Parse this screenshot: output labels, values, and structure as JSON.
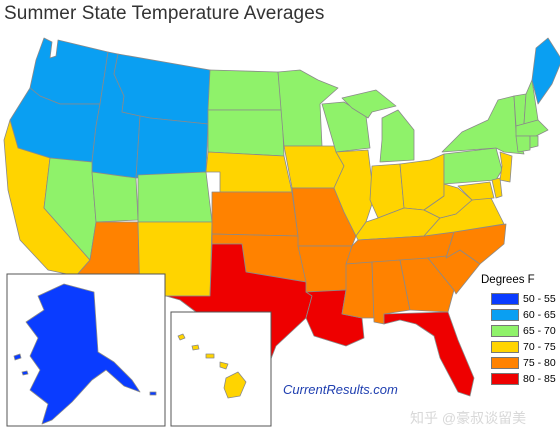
{
  "title": "Summer State Temperature Averages",
  "credit": "CurrentResults.com",
  "watermark": "知乎 @豪叔谈留美",
  "legend": {
    "title": "Degrees F",
    "items": [
      {
        "label": "50 - 55",
        "color": "#0a3cff"
      },
      {
        "label": "60 - 65",
        "color": "#0a9ff2"
      },
      {
        "label": "65 - 70",
        "color": "#8ff26a"
      },
      {
        "label": "70 - 75",
        "color": "#ffd400"
      },
      {
        "label": "75 - 80",
        "color": "#ff8200"
      },
      {
        "label": "80 - 85",
        "color": "#ee0000"
      }
    ]
  },
  "states": [
    {
      "code": "WA",
      "range": "60 - 65"
    },
    {
      "code": "OR",
      "range": "60 - 65"
    },
    {
      "code": "ID",
      "range": "60 - 65"
    },
    {
      "code": "MT",
      "range": "60 - 65"
    },
    {
      "code": "WY",
      "range": "60 - 65"
    },
    {
      "code": "ME",
      "range": "60 - 65"
    },
    {
      "code": "CA",
      "range": "70 - 75"
    },
    {
      "code": "NV",
      "range": "65 - 70"
    },
    {
      "code": "UT",
      "range": "65 - 70"
    },
    {
      "code": "CO",
      "range": "65 - 70"
    },
    {
      "code": "AZ",
      "range": "75 - 80"
    },
    {
      "code": "NM",
      "range": "70 - 75"
    },
    {
      "code": "ND",
      "range": "65 - 70"
    },
    {
      "code": "SD",
      "range": "65 - 70"
    },
    {
      "code": "NE",
      "range": "70 - 75"
    },
    {
      "code": "KS",
      "range": "75 - 80"
    },
    {
      "code": "OK",
      "range": "75 - 80"
    },
    {
      "code": "TX",
      "range": "80 - 85"
    },
    {
      "code": "MN",
      "range": "65 - 70"
    },
    {
      "code": "IA",
      "range": "70 - 75"
    },
    {
      "code": "MO",
      "range": "75 - 80"
    },
    {
      "code": "AR",
      "range": "75 - 80"
    },
    {
      "code": "LA",
      "range": "80 - 85"
    },
    {
      "code": "WI",
      "range": "65 - 70"
    },
    {
      "code": "IL",
      "range": "70 - 75"
    },
    {
      "code": "MI",
      "range": "65 - 70"
    },
    {
      "code": "IN",
      "range": "70 - 75"
    },
    {
      "code": "OH",
      "range": "70 - 75"
    },
    {
      "code": "KY",
      "range": "70 - 75"
    },
    {
      "code": "TN",
      "range": "75 - 80"
    },
    {
      "code": "MS",
      "range": "75 - 80"
    },
    {
      "code": "AL",
      "range": "75 - 80"
    },
    {
      "code": "GA",
      "range": "75 - 80"
    },
    {
      "code": "FL",
      "range": "80 - 85"
    },
    {
      "code": "SC",
      "range": "75 - 80"
    },
    {
      "code": "NC",
      "range": "75 - 80"
    },
    {
      "code": "VA",
      "range": "70 - 75"
    },
    {
      "code": "WV",
      "range": "70 - 75"
    },
    {
      "code": "PA",
      "range": "65 - 70"
    },
    {
      "code": "NY",
      "range": "65 - 70"
    },
    {
      "code": "VT",
      "range": "65 - 70"
    },
    {
      "code": "NH",
      "range": "65 - 70"
    },
    {
      "code": "MA",
      "range": "65 - 70"
    },
    {
      "code": "CT",
      "range": "65 - 70"
    },
    {
      "code": "RI",
      "range": "65 - 70"
    },
    {
      "code": "NJ",
      "range": "70 - 75"
    },
    {
      "code": "DE",
      "range": "70 - 75"
    },
    {
      "code": "MD",
      "range": "70 - 75"
    },
    {
      "code": "AK",
      "range": "50 - 55"
    },
    {
      "code": "HI",
      "range": "70 - 75"
    }
  ]
}
